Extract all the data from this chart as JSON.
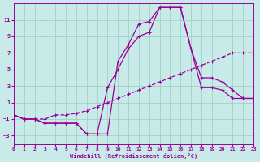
{
  "bg_color": "#c8eae8",
  "line_color": "#990099",
  "grid_color": "#99ccbb",
  "xlim": [
    0,
    23
  ],
  "ylim": [
    -4,
    13
  ],
  "xticks": [
    0,
    1,
    2,
    3,
    4,
    5,
    6,
    7,
    8,
    9,
    10,
    11,
    12,
    13,
    14,
    15,
    16,
    17,
    18,
    19,
    20,
    21,
    22,
    23
  ],
  "yticks": [
    -3,
    -1,
    1,
    3,
    5,
    7,
    9,
    11
  ],
  "xlabel": "Windchill (Refroidissement éolien,°C)",
  "hours": [
    0,
    1,
    2,
    3,
    4,
    5,
    6,
    7,
    8,
    9,
    10,
    11,
    12,
    13,
    14,
    15,
    16,
    17,
    18,
    19,
    20,
    21,
    22,
    23
  ],
  "y_upper": [
    -0.5,
    -1.0,
    -1.0,
    -1.5,
    -1.5,
    -1.5,
    -1.5,
    -2.8,
    -2.8,
    -2.8,
    6.0,
    8.0,
    10.5,
    10.8,
    12.5,
    12.5,
    12.5,
    7.5,
    2.8,
    2.8,
    2.5,
    1.5,
    1.5,
    1.5
  ],
  "y_mid": [
    -0.5,
    -1.0,
    -1.0,
    -1.5,
    -1.5,
    -1.5,
    -1.5,
    -2.8,
    -2.8,
    2.8,
    5.0,
    7.5,
    9.0,
    9.5,
    12.5,
    12.5,
    12.5,
    7.5,
    4.0,
    4.0,
    3.5,
    2.5,
    1.5,
    1.5
  ],
  "y_lower": [
    -0.5,
    -1.0,
    -1.0,
    -1.0,
    -0.5,
    -0.5,
    -0.3,
    0.0,
    0.5,
    1.0,
    1.5,
    2.0,
    2.5,
    3.0,
    3.5,
    4.0,
    4.5,
    5.0,
    5.5,
    6.0,
    6.5,
    7.0,
    7.0,
    7.0
  ]
}
